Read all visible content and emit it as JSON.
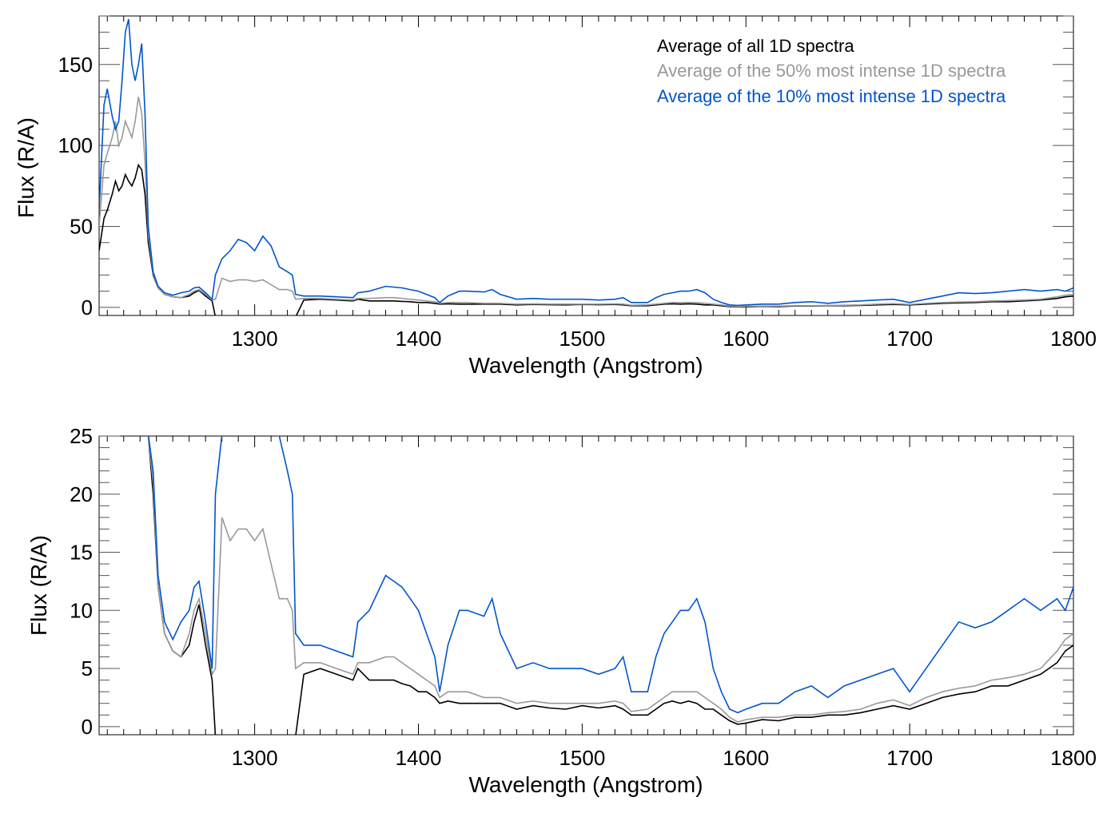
{
  "chart_data": [
    {
      "type": "line",
      "title": "",
      "xlabel": "Wavelength (Angstrom)",
      "ylabel": "Flux (R/A)",
      "xlim": [
        1205,
        1800
      ],
      "ylim": [
        -5,
        180
      ],
      "xticks": [
        1300,
        1400,
        1500,
        1600,
        1700,
        1800
      ],
      "yticks": [
        0,
        50,
        100,
        150
      ],
      "x_minor_step": 10,
      "y_minor_step": 10,
      "legend_placement": "top-right",
      "legend": [
        "Average of all 1D spectra",
        "Average of the 50% most intense 1D spectra",
        "Average of the 10% most intense 1D spectra"
      ]
    },
    {
      "type": "line",
      "title": "",
      "xlabel": "Wavelength (Angstrom)",
      "ylabel": "Flux (R/A)",
      "xlim": [
        1205,
        1800
      ],
      "ylim": [
        -0.7,
        25
      ],
      "xticks": [
        1300,
        1400,
        1500,
        1600,
        1700,
        1800
      ],
      "yticks": [
        0,
        5,
        10,
        15,
        20,
        25
      ],
      "x_minor_step": 10,
      "y_minor_step": 1
    }
  ],
  "series": {
    "x": [
      1205,
      1208,
      1210,
      1213,
      1215,
      1217,
      1219,
      1221,
      1223,
      1225,
      1227,
      1229,
      1231,
      1233,
      1235,
      1238,
      1241,
      1245,
      1250,
      1255,
      1260,
      1263,
      1266,
      1270,
      1274,
      1276,
      1280,
      1285,
      1290,
      1295,
      1300,
      1305,
      1310,
      1315,
      1320,
      1323,
      1325,
      1330,
      1340,
      1350,
      1360,
      1363,
      1370,
      1380,
      1385,
      1390,
      1395,
      1400,
      1405,
      1410,
      1413,
      1418,
      1425,
      1430,
      1440,
      1445,
      1450,
      1460,
      1470,
      1480,
      1490,
      1500,
      1510,
      1520,
      1525,
      1530,
      1540,
      1545,
      1550,
      1555,
      1560,
      1565,
      1570,
      1575,
      1580,
      1585,
      1590,
      1595,
      1600,
      1610,
      1620,
      1630,
      1640,
      1650,
      1660,
      1670,
      1680,
      1690,
      1700,
      1710,
      1720,
      1730,
      1740,
      1750,
      1760,
      1770,
      1780,
      1790,
      1795,
      1800
    ],
    "items": [
      {
        "name": "Average of all 1D spectra",
        "color": "#000000",
        "y": [
          35,
          55,
          60,
          70,
          78,
          72,
          75,
          82,
          78,
          75,
          80,
          88,
          85,
          70,
          40,
          20,
          12,
          8,
          6.5,
          6,
          7,
          9,
          10.5,
          7,
          4,
          -20,
          -50,
          -50,
          -50,
          -50,
          -50,
          -50,
          -50,
          -50,
          -50,
          -50,
          -10,
          4.5,
          5,
          4.5,
          4,
          5,
          4,
          4,
          4,
          3.7,
          3.5,
          3,
          3,
          2.5,
          2,
          2.2,
          2,
          2,
          2,
          2,
          2,
          1.5,
          1.8,
          1.6,
          1.5,
          1.8,
          1.6,
          1.8,
          1.5,
          1,
          1,
          1.5,
          2,
          2.2,
          2,
          2.2,
          2,
          1.5,
          1.5,
          1,
          0.5,
          0.2,
          0.3,
          0.6,
          0.5,
          0.8,
          0.8,
          1,
          1,
          1.2,
          1.5,
          1.8,
          1.5,
          2,
          2.5,
          2.8,
          3,
          3.5,
          3.5,
          4,
          4.5,
          5.5,
          6.5,
          7
        ]
      },
      {
        "name": "Average of the 50% most intense 1D spectra",
        "color": "#999999",
        "y": [
          50,
          88,
          95,
          105,
          115,
          100,
          105,
          115,
          110,
          105,
          115,
          130,
          120,
          90,
          45,
          21,
          12,
          8,
          6.5,
          6,
          8,
          10,
          11,
          8,
          4.5,
          5,
          18,
          16,
          17,
          17,
          16,
          17,
          14,
          11,
          11,
          10,
          5,
          5.5,
          5.5,
          5,
          4.5,
          5.5,
          5.5,
          6,
          6,
          5.5,
          5,
          4.5,
          4,
          3.5,
          2.5,
          3,
          3,
          3,
          2.5,
          2.5,
          2.5,
          2,
          2.2,
          2,
          2,
          2,
          2,
          2.2,
          2,
          1.3,
          1.5,
          2,
          2.5,
          3,
          3,
          3,
          3,
          2.5,
          2,
          1.5,
          0.8,
          0.4,
          0.6,
          0.8,
          0.8,
          1,
          1,
          1.2,
          1.3,
          1.5,
          2,
          2.3,
          1.8,
          2.5,
          3,
          3.3,
          3.5,
          4,
          4.2,
          4.5,
          5,
          6.5,
          7.5,
          8
        ]
      },
      {
        "name": "Average of the 10% most intense 1D spectra",
        "color": "#0055cc",
        "y": [
          60,
          125,
          135,
          118,
          110,
          115,
          140,
          170,
          178,
          150,
          140,
          150,
          163,
          120,
          50,
          22,
          13,
          9,
          7.5,
          9,
          10,
          12,
          12.5,
          9,
          5,
          20,
          30,
          35,
          42,
          40,
          35,
          44,
          38,
          25,
          22,
          20,
          8,
          7,
          7,
          6.5,
          6,
          9,
          10,
          13,
          12.5,
          12,
          11,
          10,
          8,
          6,
          3,
          7,
          10,
          10,
          9.5,
          11,
          8,
          5,
          5.5,
          5,
          5,
          5,
          4.5,
          5,
          6,
          3,
          3,
          6,
          8,
          9,
          10,
          10,
          11,
          9,
          5,
          3,
          1.5,
          1.2,
          1.5,
          2,
          2,
          3,
          3.5,
          2.5,
          3.5,
          4,
          4.5,
          5,
          3,
          5,
          7,
          9,
          8.5,
          9,
          10,
          11,
          10,
          11,
          10,
          12
        ]
      }
    ]
  }
}
